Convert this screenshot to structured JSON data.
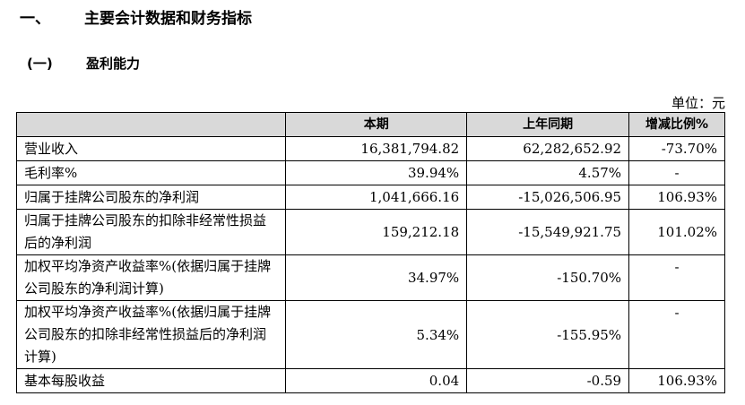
{
  "heading1": {
    "num": "一、",
    "text": "主要会计数据和财务指标"
  },
  "heading2": {
    "num": "(一)",
    "text": "盈利能力"
  },
  "unit": "单位：元",
  "table": {
    "headers": [
      "",
      "本期",
      "上年同期",
      "增减比例%"
    ],
    "rows": [
      {
        "label": "营业收入",
        "cur": "16,381,794.82",
        "prev": "62,282,652.92",
        "chg": "-73.70%"
      },
      {
        "label": "毛利率%",
        "cur": "39.94%",
        "prev": "4.57%",
        "chg": "-"
      },
      {
        "label": "归属于挂牌公司股东的净利润",
        "cur": "1,041,666.16",
        "prev": "-15,026,506.95",
        "chg": "106.93%"
      },
      {
        "label": "归属于挂牌公司股东的扣除非经常性损益后的净利润",
        "cur": "159,212.18",
        "prev": "-15,549,921.75",
        "chg": "101.02%"
      },
      {
        "label": "加权平均净资产收益率%(依据归属于挂牌公司股东的净利润计算)",
        "cur": "34.97%",
        "prev": "-150.70%",
        "chg": "-"
      },
      {
        "label": "加权平均净资产收益率%(依据归属于挂牌公司股东的扣除非经常性损益后的净利润计算)",
        "cur": "5.34%",
        "prev": "-155.95%",
        "chg": "-"
      },
      {
        "label": "基本每股收益",
        "cur": "0.04",
        "prev": "-0.59",
        "chg": "106.93%"
      }
    ]
  }
}
